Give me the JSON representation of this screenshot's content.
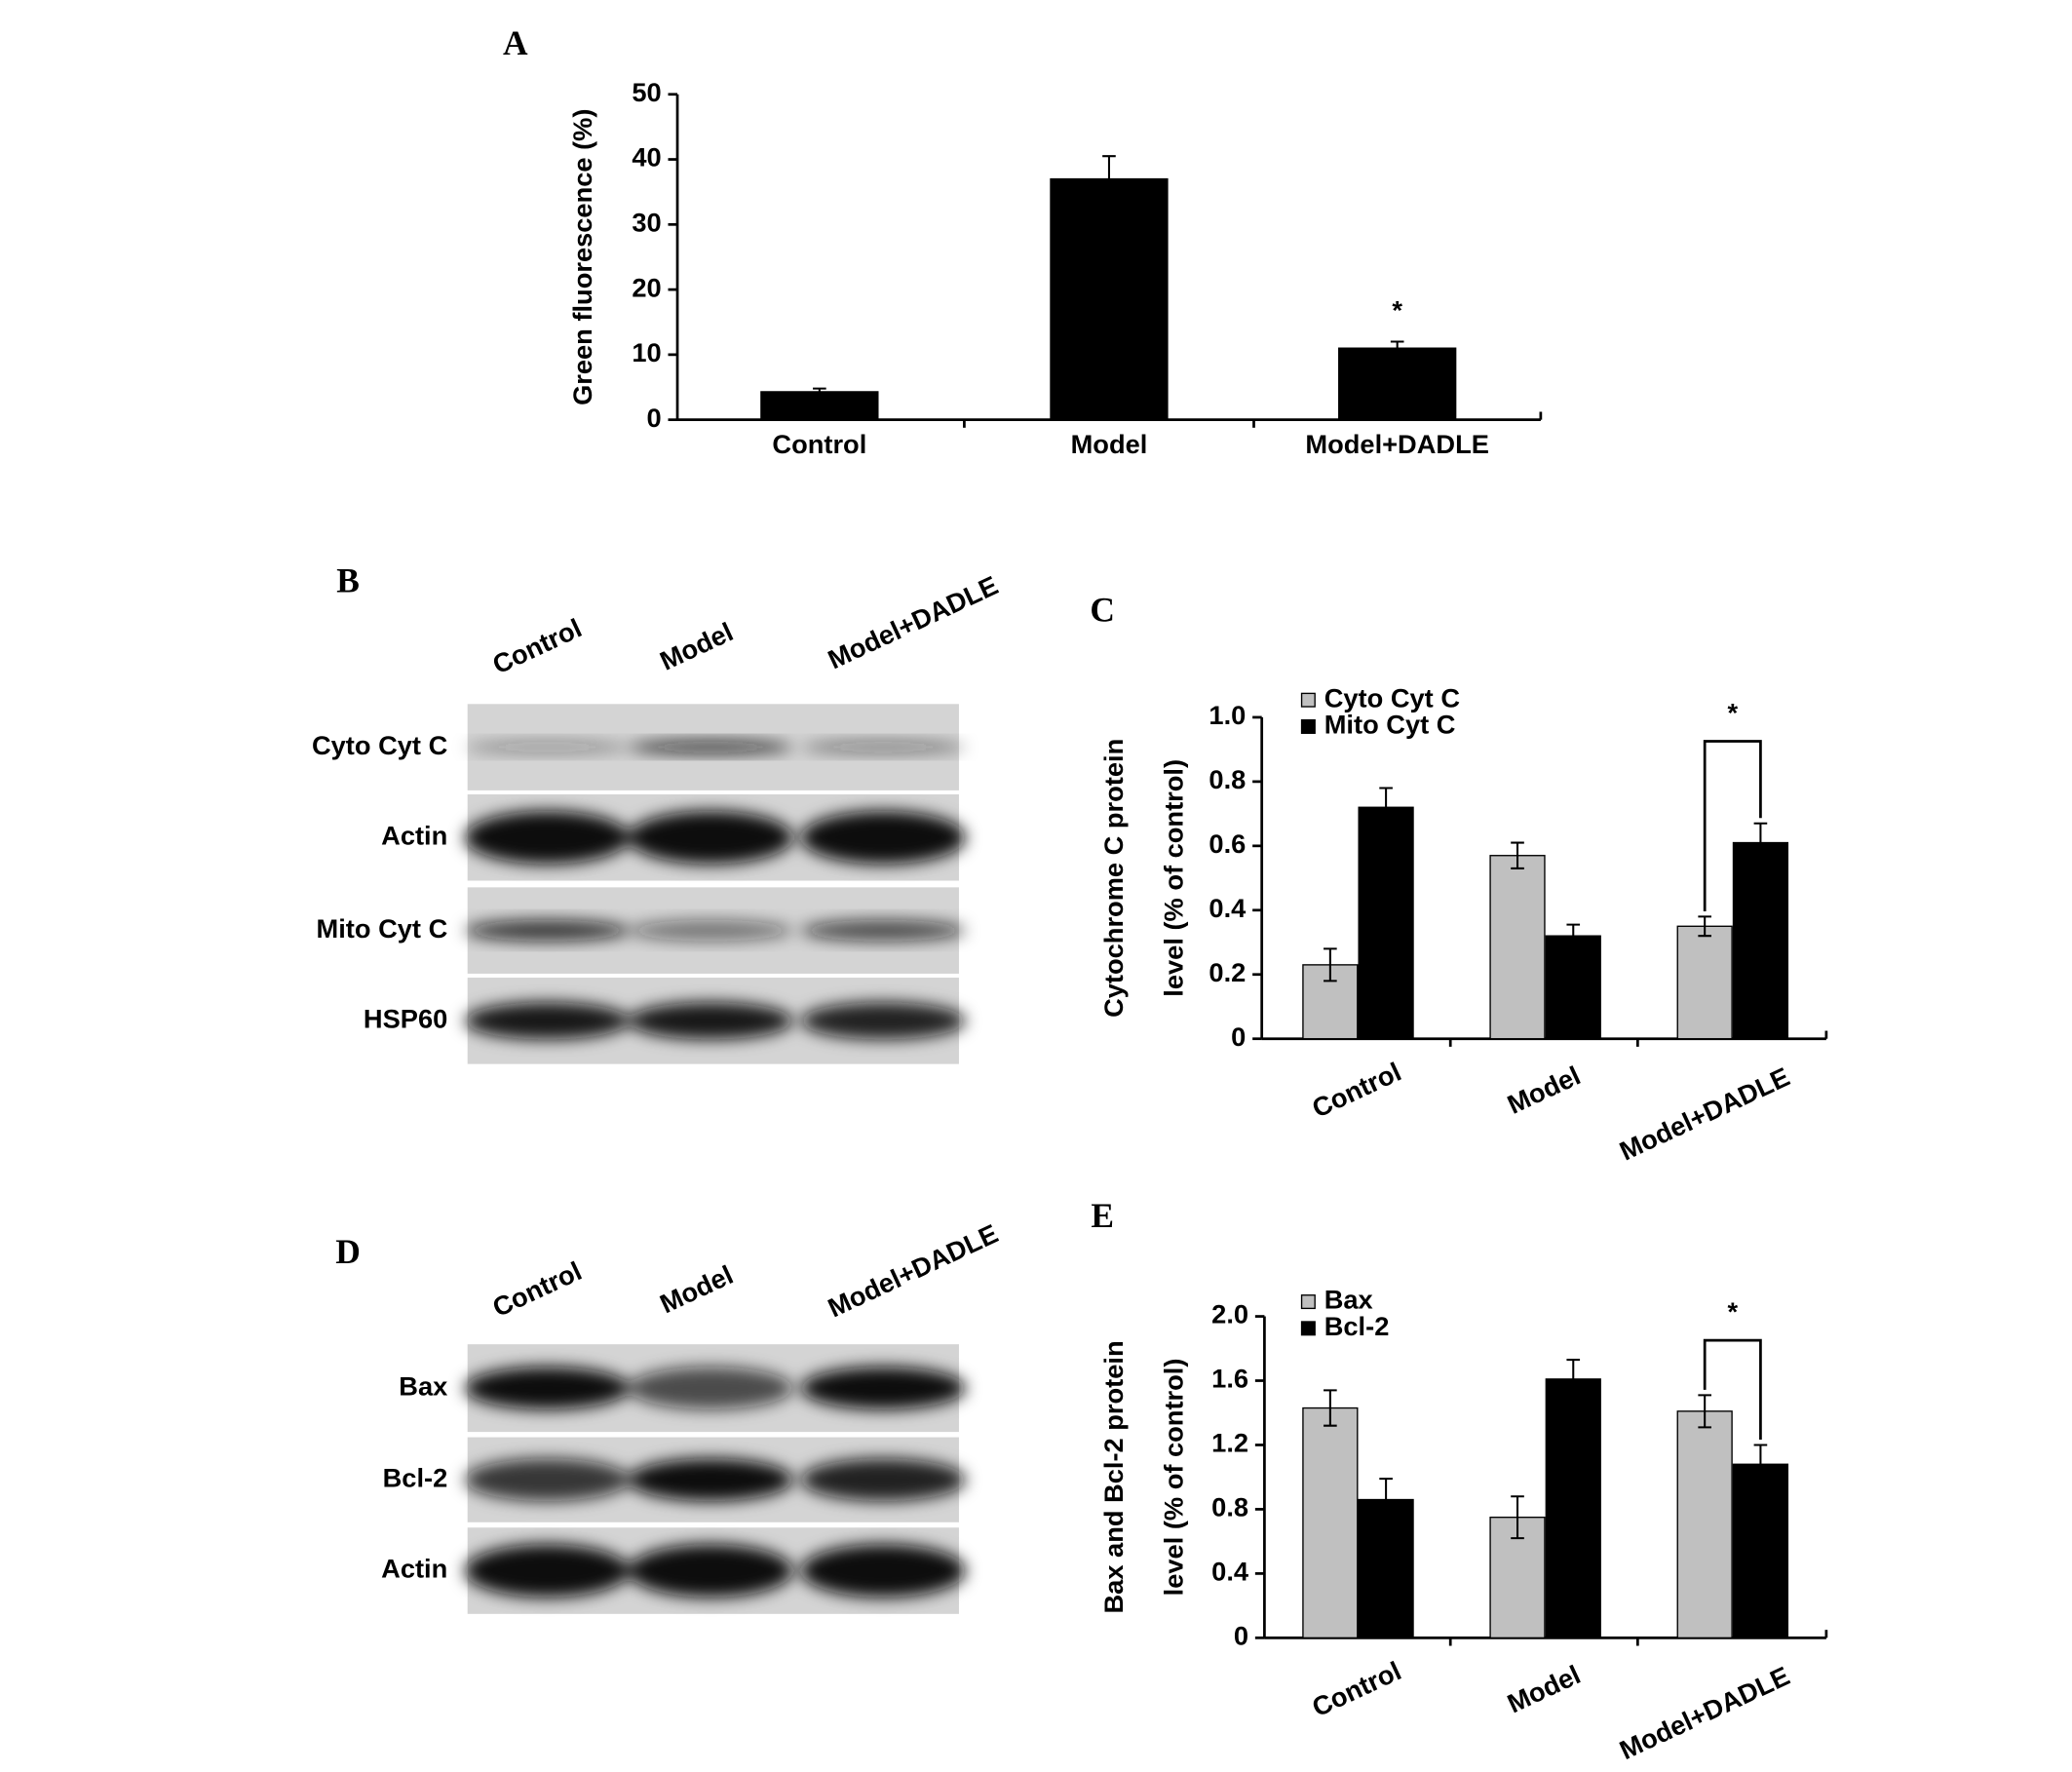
{
  "chart_data": [
    {
      "type": "bar",
      "panel_label": "A",
      "ylabel": [
        "Green fluorescence (%)"
      ],
      "categories": [
        "Control",
        "Model",
        "Model+DADLE"
      ],
      "values": [
        4.3,
        37,
        11
      ],
      "errors": [
        0.5,
        3.5,
        1
      ],
      "color": "#000000",
      "significance_label": "*",
      "ylim": [
        0,
        50
      ],
      "yticks": [
        0,
        10,
        20,
        30,
        40,
        50
      ]
    },
    {
      "type": "bar",
      "panel_label": "C",
      "ylabel": [
        "Cytochrome C protein",
        "level  (% of control)"
      ],
      "categories": [
        "Control",
        "Model",
        "Model+DADLE"
      ],
      "series": [
        {
          "name": "Cyto Cyt C",
          "color": "#c0c0c0",
          "values": [
            0.23,
            0.57,
            0.35
          ],
          "errors": [
            0.05,
            0.04,
            0.03
          ]
        },
        {
          "name": "Mito Cyt C",
          "color": "#000000",
          "values": [
            0.72,
            0.32,
            0.61
          ],
          "errors": [
            0.06,
            0.035,
            0.06
          ]
        }
      ],
      "significance_label": "*",
      "ylim": [
        0,
        1
      ],
      "yticks": [
        0,
        0.2,
        0.4,
        0.6,
        0.8,
        {
          "value": 1,
          "label": "1.0"
        }
      ]
    },
    {
      "type": "bar",
      "panel_label": "E",
      "ylabel": [
        "Bax and Bcl-2 protein",
        "level (% of control)"
      ],
      "categories": [
        "Control",
        "Model",
        "Model+DADLE"
      ],
      "series": [
        {
          "name": "Bax",
          "color": "#c0c0c0",
          "values": [
            1.43,
            0.75,
            1.41
          ],
          "errors": [
            0.11,
            0.13,
            0.1
          ]
        },
        {
          "name": "Bcl-2",
          "color": "#000000",
          "values": [
            0.86,
            1.61,
            1.08
          ],
          "errors": [
            0.13,
            0.12,
            0.12
          ]
        }
      ],
      "significance_label": "*",
      "ylim": [
        0,
        2
      ],
      "yticks": [
        0,
        0.4,
        0.8,
        1.2,
        1.6,
        {
          "value": 2,
          "label": "2.0"
        }
      ]
    }
  ],
  "blots": [
    {
      "panel_label": "B",
      "lanes": [
        "Control",
        "Model",
        "Model+DADLE"
      ],
      "rows": [
        "Cyto Cyt C",
        "Actin",
        "Mito Cyt C",
        "HSP60"
      ]
    },
    {
      "panel_label": "D",
      "lanes": [
        "Control",
        "Model",
        "Model+DADLE"
      ],
      "rows": [
        "Bax",
        "Bcl-2",
        "Actin"
      ]
    }
  ]
}
